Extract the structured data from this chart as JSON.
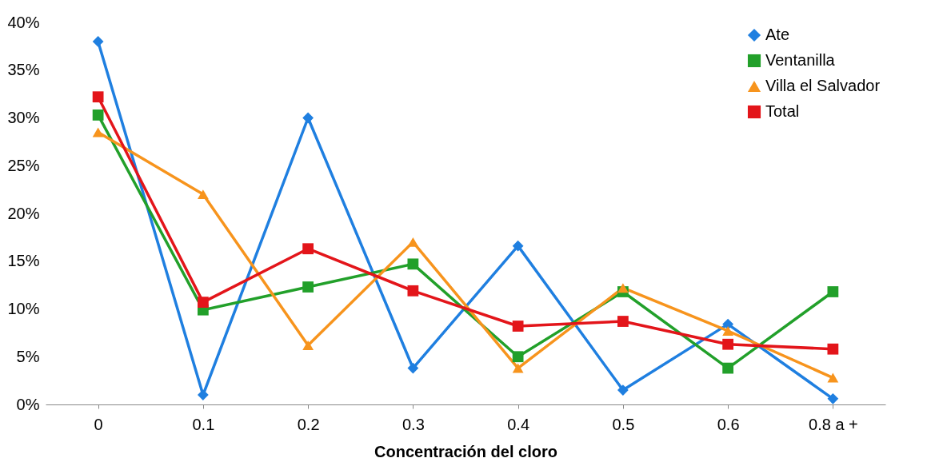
{
  "chart_data": {
    "type": "line",
    "xlabel": "Concentración del cloro",
    "categories": [
      "0",
      "0.1",
      "0.2",
      "0.3",
      "0.4",
      "0.5",
      "0.6",
      "0.8 a +"
    ],
    "ylim": [
      0,
      40
    ],
    "yticks": [
      {
        "value": 0,
        "label": "0%"
      },
      {
        "value": 5,
        "label": "5%"
      },
      {
        "value": 10,
        "label": "10%"
      },
      {
        "value": 15,
        "label": "15%"
      },
      {
        "value": 20,
        "label": "20%"
      },
      {
        "value": 25,
        "label": "25%"
      },
      {
        "value": 30,
        "label": "30%"
      },
      {
        "value": 35,
        "label": "35%"
      },
      {
        "value": 40,
        "label": "40%"
      }
    ],
    "grid": false,
    "legend": "top right",
    "series": [
      {
        "name": "Ate",
        "color": "#1f7fe0",
        "marker": "diamond",
        "values": [
          38,
          1,
          30,
          3.8,
          16.6,
          1.5,
          8.4,
          0.6
        ]
      },
      {
        "name": "Ventanilla",
        "color": "#22a02a",
        "marker": "square",
        "values": [
          30.3,
          9.9,
          12.3,
          14.7,
          5,
          11.8,
          3.8,
          11.8
        ]
      },
      {
        "name": "Villa el Salvador",
        "color": "#f7941d",
        "marker": "triangle",
        "values": [
          28.5,
          22,
          6.2,
          17,
          3.8,
          12.2,
          7.7,
          2.8
        ]
      },
      {
        "name": "Total",
        "color": "#e3151a",
        "marker": "square",
        "values": [
          32.2,
          10.7,
          16.3,
          11.9,
          8.2,
          8.7,
          6.3,
          5.8
        ]
      }
    ]
  }
}
